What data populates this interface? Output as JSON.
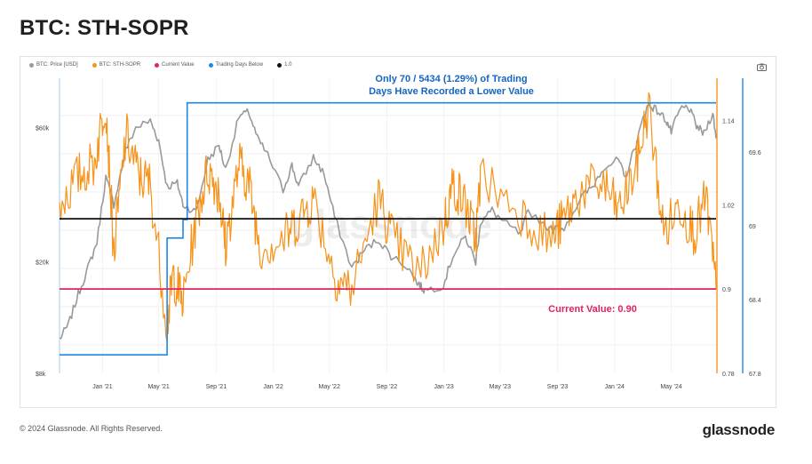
{
  "page_title": "BTC: STH-SOPR",
  "legend": [
    {
      "label": "BTC: Price [USD]",
      "color": "#999999"
    },
    {
      "label": "BTC: STH-SOPR",
      "color": "#f7931a"
    },
    {
      "label": "Current Value",
      "color": "#e0245e"
    },
    {
      "label": "Trading Days Below",
      "color": "#1e88e5"
    },
    {
      "label": "1.0",
      "color": "#111111"
    }
  ],
  "camera_icon": "camera-icon",
  "footer": {
    "copyright": "© 2024 Glassnode. All Rights Reserved.",
    "brand": "glassnode",
    "watermark": "glassnode"
  },
  "chart_data": {
    "type": "line",
    "title": "BTC: STH-SOPR",
    "x_tick_labels": [
      "Jan '21",
      "May '21",
      "Sep '21",
      "Jan '22",
      "May '22",
      "Sep '22",
      "Jan '23",
      "May '23",
      "Sep '23",
      "Jan '24",
      "May '24"
    ],
    "x_range": [
      "2020-10-01",
      "2024-08-05"
    ],
    "y_left": {
      "label": "BTC: Price [USD]",
      "scale": "log",
      "range": [
        8000,
        90000
      ],
      "ticks": [
        {
          "value": 8000,
          "label": "$8k"
        },
        {
          "value": 20000,
          "label": "$20k"
        },
        {
          "value": 60000,
          "label": "$60k"
        }
      ]
    },
    "y_right_sopr": {
      "label": "BTC: STH-SOPR",
      "range": [
        0.78,
        1.2
      ],
      "ticks": [
        {
          "value": 0.78,
          "label": "0.78"
        },
        {
          "value": 0.9,
          "label": "0.9"
        },
        {
          "value": 1.02,
          "label": "1.02"
        },
        {
          "value": 1.14,
          "label": "1.14"
        }
      ]
    },
    "y_right_days": {
      "label": "Trading Days Below",
      "range": [
        67.8,
        70.2
      ],
      "ticks": [
        {
          "value": 67.8,
          "label": "67.8"
        },
        {
          "value": 68.4,
          "label": "68.4"
        },
        {
          "value": 69,
          "label": "69"
        },
        {
          "value": 69.6,
          "label": "69.6"
        }
      ]
    },
    "series": [
      {
        "name": "BTC: Price [USD]",
        "color": "#999999",
        "x": [
          "2020-10-01",
          "2020-10-20",
          "2020-11-10",
          "2020-12-01",
          "2020-12-20",
          "2021-01-08",
          "2021-01-25",
          "2021-02-20",
          "2021-03-13",
          "2021-04-13",
          "2021-05-01",
          "2021-05-19",
          "2021-06-10",
          "2021-06-22",
          "2021-07-20",
          "2021-08-14",
          "2021-09-07",
          "2021-09-21",
          "2021-10-20",
          "2021-11-10",
          "2021-11-28",
          "2021-12-20",
          "2022-01-22",
          "2022-02-10",
          "2022-02-24",
          "2022-03-28",
          "2022-04-20",
          "2022-05-12",
          "2022-06-18",
          "2022-07-15",
          "2022-08-14",
          "2022-09-10",
          "2022-10-15",
          "2022-11-09",
          "2022-11-21",
          "2022-12-31",
          "2023-01-20",
          "2023-02-16",
          "2023-03-10",
          "2023-03-20",
          "2023-04-14",
          "2023-05-10",
          "2023-06-15",
          "2023-06-30",
          "2023-08-18",
          "2023-09-15",
          "2023-10-23",
          "2023-11-15",
          "2023-12-08",
          "2024-01-10",
          "2024-01-23",
          "2024-02-15",
          "2024-03-05",
          "2024-03-14",
          "2024-04-01",
          "2024-04-20",
          "2024-05-01",
          "2024-05-21",
          "2024-06-07",
          "2024-06-24",
          "2024-07-10",
          "2024-07-29",
          "2024-08-05"
        ],
        "values": [
          10600,
          11900,
          15300,
          19000,
          23500,
          40000,
          32000,
          50000,
          60000,
          63500,
          54000,
          37000,
          38000,
          32000,
          30000,
          46000,
          52000,
          42500,
          66000,
          68000,
          55000,
          48000,
          36000,
          44000,
          37000,
          47000,
          41000,
          29000,
          19000,
          22000,
          24000,
          21000,
          19200,
          16500,
          15800,
          16500,
          21000,
          24500,
          20000,
          27500,
          30500,
          27500,
          25000,
          30500,
          26000,
          26500,
          34000,
          37000,
          43500,
          46000,
          39500,
          52000,
          67000,
          73000,
          69000,
          64000,
          58000,
          70000,
          71000,
          61000,
          57000,
          68000,
          55000
        ]
      },
      {
        "name": "BTC: STH-SOPR",
        "color": "#f7931a",
        "x": [
          "2020-10-01",
          "2020-11-10",
          "2020-12-15",
          "2021-01-08",
          "2021-01-25",
          "2021-02-20",
          "2021-03-20",
          "2021-04-13",
          "2021-05-19",
          "2021-06-01",
          "2021-06-22",
          "2021-07-20",
          "2021-08-14",
          "2021-09-07",
          "2021-09-21",
          "2021-10-20",
          "2021-11-10",
          "2021-12-04",
          "2022-01-22",
          "2022-02-24",
          "2022-03-28",
          "2022-05-12",
          "2022-06-18",
          "2022-08-14",
          "2022-09-15",
          "2022-11-09",
          "2022-12-31",
          "2023-01-20",
          "2023-02-16",
          "2023-03-10",
          "2023-03-20",
          "2023-06-15",
          "2023-08-18",
          "2023-09-15",
          "2023-10-23",
          "2023-12-08",
          "2024-01-10",
          "2024-02-15",
          "2024-03-14",
          "2024-04-15",
          "2024-05-20",
          "2024-06-20",
          "2024-07-15",
          "2024-08-05"
        ],
        "values": [
          1.02,
          1.06,
          1.08,
          1.17,
          0.95,
          1.12,
          1.06,
          1.05,
          0.85,
          0.92,
          0.88,
          1.0,
          1.07,
          1.04,
          0.96,
          1.08,
          1.05,
          0.96,
          0.97,
          1.0,
          1.03,
          0.92,
          0.9,
          1.03,
          0.97,
          0.92,
          0.99,
          1.05,
          1.02,
          0.97,
          1.06,
          1.01,
          0.97,
          1.0,
          1.04,
          1.05,
          1.01,
          1.07,
          1.16,
          0.98,
          1.02,
          0.98,
          1.03,
          0.9
        ]
      },
      {
        "name": "Trading Days Below",
        "color": "#1e88e5",
        "x": [
          "2020-10-01",
          "2021-05-19",
          "2021-05-19",
          "2021-06-22",
          "2021-06-22",
          "2021-07-01",
          "2021-07-01",
          "2024-08-05"
        ],
        "values": [
          67.95,
          67.95,
          68.9,
          68.9,
          69.05,
          69.05,
          70.0,
          70.0
        ]
      }
    ],
    "reference_lines": [
      {
        "name": "1.0",
        "value": 1.0,
        "color": "#111111"
      },
      {
        "name": "Current Value",
        "value": 0.9,
        "color": "#e0245e"
      }
    ],
    "annotations": [
      {
        "text": "Only 70 / 5434 (1.29%) of Trading Days Have Recorded a Lower Value",
        "line1": "Only 70 / 5434 (1.29%) of Trading",
        "line2": "Days Have Recorded a Lower Value",
        "color": "#1565c0"
      },
      {
        "text": "Current Value: 0.90",
        "color": "#e0245e"
      }
    ],
    "grid": true,
    "legend_position": "top-left"
  }
}
